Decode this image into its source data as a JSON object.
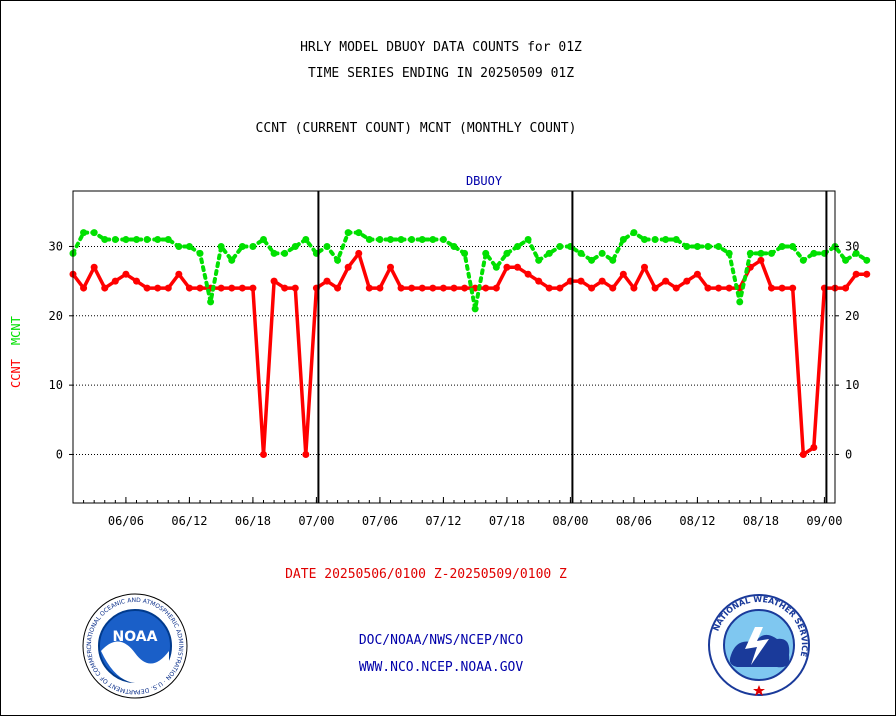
{
  "header": {
    "title_line1": "HRLY MODEL DBUOY DATA COUNTS for 01Z",
    "title_line2": "TIME SERIES ENDING IN 20250509 01Z",
    "title_line3": "CCNT (CURRENT COUNT) MCNT (MONTHLY COUNT)"
  },
  "footer": {
    "date_range": "DATE 20250506/0100 Z-20250509/0100 Z",
    "org_line": "DOC/NOAA/NWS/NCEP/NCO",
    "website": "WWW.NCO.NCEP.NOAA.GOV"
  },
  "logos": {
    "left": {
      "icon": "noaa-logo-icon",
      "text": "NOAA",
      "ring_text": "NATIONAL OCEANIC AND ATMOSPHERIC ADMINISTRATION · U.S. DEPARTMENT OF COMMERCE"
    },
    "right": {
      "icon": "nws-logo-icon",
      "ring_text": "NATIONAL WEATHER SERVICE"
    }
  },
  "colors": {
    "ccnt": "#ff0000",
    "mcnt": "#00e000",
    "axis_title": "#0000aa",
    "text": "#000000"
  },
  "chart_data": {
    "type": "line",
    "title": "DBUOY",
    "ylabel_series": [
      "CCNT",
      "MCNT"
    ],
    "ylim": [
      -7,
      38
    ],
    "yticks": [
      0,
      10,
      20,
      30
    ],
    "y_tick_labels": [
      "0",
      "10",
      "20",
      "30"
    ],
    "grid": "horizontal dotted at y ticks",
    "x_tick_labels": [
      "06/06",
      "06/12",
      "06/18",
      "07/00",
      "07/06",
      "07/12",
      "07/18",
      "08/00",
      "08/06",
      "08/12",
      "08/18",
      "09/00"
    ],
    "x_tick_hours": [
      5,
      11,
      17,
      23,
      29,
      35,
      41,
      47,
      53,
      59,
      65,
      71
    ],
    "x_range_hours": [
      0,
      72
    ],
    "day_boundaries_hours": [
      23,
      47,
      71
    ],
    "series": [
      {
        "name": "CCNT",
        "color": "#ff0000",
        "style": "solid",
        "values": [
          26,
          24,
          27,
          24,
          25,
          26,
          25,
          24,
          24,
          24,
          26,
          24,
          24,
          24,
          24,
          24,
          24,
          24,
          0,
          25,
          24,
          24,
          0,
          24,
          25,
          24,
          27,
          29,
          24,
          24,
          27,
          24,
          24,
          24,
          24,
          24,
          24,
          24,
          24,
          24,
          24,
          27,
          27,
          26,
          25,
          24,
          24,
          25,
          25,
          24,
          25,
          24,
          26,
          24,
          27,
          24,
          25,
          24,
          25,
          26,
          24,
          24,
          24,
          24,
          27,
          28,
          24,
          24,
          24,
          0,
          1,
          24,
          24,
          24,
          26,
          26
        ]
      },
      {
        "name": "MCNT",
        "color": "#00e000",
        "style": "dotted",
        "values": [
          29,
          32,
          32,
          31,
          31,
          31,
          31,
          31,
          31,
          31,
          30,
          30,
          29,
          22,
          30,
          28,
          30,
          30,
          31,
          29,
          29,
          30,
          31,
          29,
          30,
          28,
          32,
          32,
          31,
          31,
          31,
          31,
          31,
          31,
          31,
          31,
          30,
          29,
          21,
          29,
          27,
          29,
          30,
          31,
          28,
          29,
          30,
          30,
          29,
          28,
          29,
          28,
          31,
          32,
          31,
          31,
          31,
          31,
          30,
          30,
          30,
          30,
          29,
          22,
          29,
          29,
          29,
          30,
          30,
          28,
          29,
          29,
          30,
          28,
          29,
          28
        ]
      }
    ]
  }
}
